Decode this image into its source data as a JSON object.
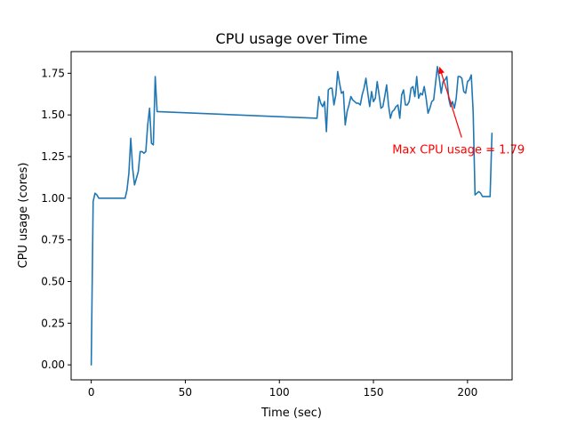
{
  "chart_data": {
    "type": "line",
    "title": "CPU usage over Time",
    "xlabel": "Time (sec)",
    "ylabel": "CPU usage (cores)",
    "xlim": [
      -10.7,
      223.7
    ],
    "ylim": [
      -0.09,
      1.88
    ],
    "xticks": [
      0,
      50,
      100,
      150,
      200
    ],
    "xtick_labels": [
      "0",
      "50",
      "100",
      "150",
      "200"
    ],
    "yticks": [
      0.0,
      0.25,
      0.5,
      0.75,
      1.0,
      1.25,
      1.5,
      1.75
    ],
    "ytick_labels": [
      "0.00",
      "0.25",
      "0.50",
      "0.75",
      "1.00",
      "1.25",
      "1.50",
      "1.75"
    ],
    "grid": false,
    "series": [
      {
        "color": "#1f77b4",
        "x": [
          0,
          1,
          2,
          3,
          4,
          6,
          8,
          10,
          12,
          14,
          16,
          17,
          18,
          19,
          20,
          21,
          22,
          23,
          24,
          25,
          26,
          27,
          28,
          29,
          30,
          31,
          32,
          33,
          34,
          35,
          120,
          121,
          122,
          123,
          124,
          125,
          126,
          127,
          128,
          129,
          130,
          131,
          132,
          133,
          134,
          135,
          136,
          137,
          138,
          139,
          140,
          141,
          142,
          143,
          144,
          145,
          146,
          147,
          148,
          149,
          150,
          151,
          152,
          153,
          154,
          155,
          156,
          157,
          158,
          159,
          160,
          161,
          162,
          163,
          164,
          165,
          166,
          167,
          168,
          169,
          170,
          171,
          172,
          173,
          174,
          175,
          176,
          177,
          178,
          179,
          180,
          181,
          182,
          183,
          184,
          185,
          186,
          187,
          188,
          189,
          190,
          191,
          192,
          193,
          194,
          195,
          196,
          197,
          198,
          199,
          200,
          201,
          202,
          203,
          204,
          205,
          206,
          207,
          208,
          209,
          210,
          211,
          212,
          213
        ],
        "y": [
          0.0,
          0.98,
          1.03,
          1.02,
          1.0,
          1.0,
          1.0,
          1.0,
          1.0,
          1.0,
          1.0,
          1.0,
          1.0,
          1.05,
          1.15,
          1.36,
          1.18,
          1.08,
          1.12,
          1.16,
          1.28,
          1.28,
          1.27,
          1.28,
          1.44,
          1.54,
          1.33,
          1.32,
          1.73,
          1.52,
          1.48,
          1.61,
          1.57,
          1.55,
          1.58,
          1.4,
          1.65,
          1.66,
          1.66,
          1.56,
          1.62,
          1.76,
          1.69,
          1.63,
          1.64,
          1.44,
          1.52,
          1.56,
          1.61,
          1.59,
          1.58,
          1.57,
          1.57,
          1.56,
          1.62,
          1.66,
          1.72,
          1.63,
          1.55,
          1.64,
          1.58,
          1.6,
          1.7,
          1.62,
          1.54,
          1.55,
          1.61,
          1.68,
          1.56,
          1.48,
          1.52,
          1.53,
          1.55,
          1.56,
          1.48,
          1.62,
          1.65,
          1.56,
          1.56,
          1.58,
          1.66,
          1.67,
          1.61,
          1.73,
          1.6,
          1.63,
          1.62,
          1.67,
          1.6,
          1.51,
          1.54,
          1.58,
          1.59,
          1.69,
          1.79,
          1.72,
          1.63,
          1.7,
          1.71,
          1.73,
          1.6,
          1.55,
          1.58,
          1.54,
          1.6,
          1.73,
          1.73,
          1.72,
          1.64,
          1.63,
          1.7,
          1.71,
          1.74,
          1.52,
          1.02,
          1.03,
          1.04,
          1.03,
          1.01,
          1.01,
          1.01,
          1.01,
          1.01,
          1.39
        ]
      }
    ],
    "annotation": {
      "text": "Max CPU usage = 1.79",
      "color": "#ff0000",
      "point": [
        185,
        1.79
      ],
      "text_at": [
        160,
        1.29
      ]
    }
  }
}
